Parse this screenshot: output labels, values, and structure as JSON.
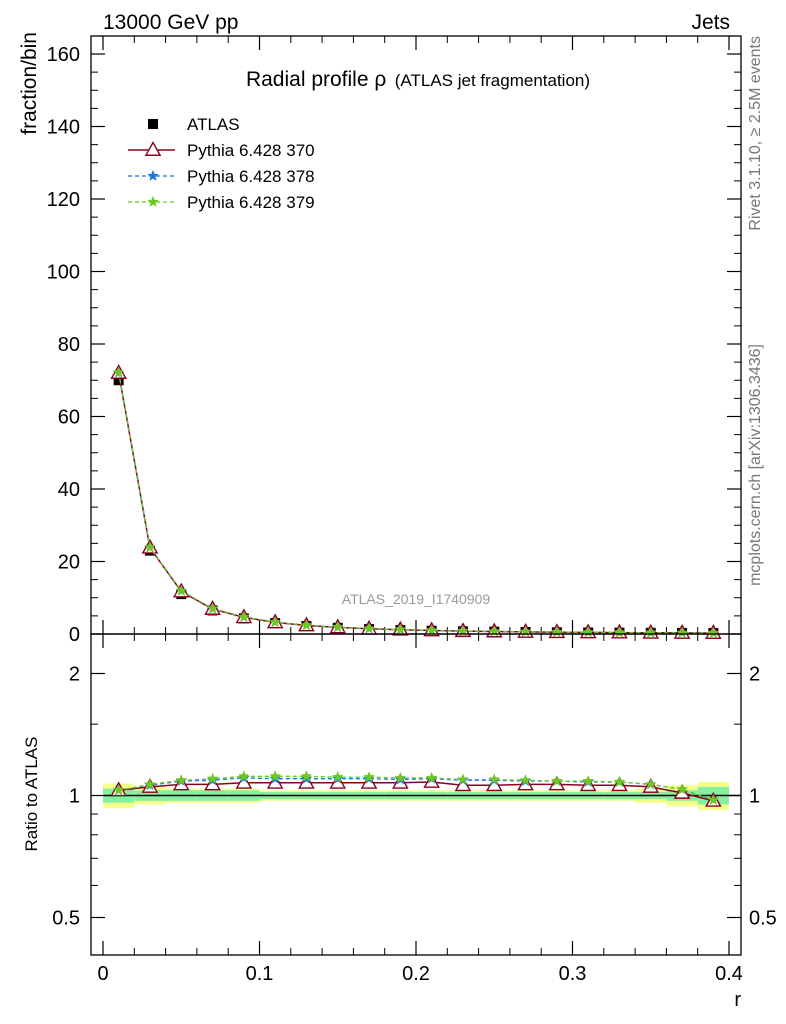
{
  "header": {
    "left": "13000 GeV pp",
    "right": "Jets"
  },
  "side_labels": {
    "rivet": "Rivet 3.1.10, ≥ 2.5M events",
    "mcplots": "mcplots.cern.ch [arXiv:1306.3436]"
  },
  "watermark": "ATLAS_2019_I1740909",
  "colors": {
    "data": "#000000",
    "pythia370": "#8b0020",
    "pythia378": "#1e78d8",
    "pythia379": "#6ec81e",
    "band_inner": "#86f0a0",
    "band_outer": "#f4ff8c"
  },
  "chart_data": [
    {
      "type": "line",
      "title": "Radial profile ρ",
      "title_suffix": "(ATLAS jet fragmentation)",
      "xlabel": "r",
      "ylabel": "fraction/bin",
      "xlim": [
        0,
        0.4
      ],
      "ylim": [
        0,
        165
      ],
      "y_ticks": [
        0,
        20,
        40,
        60,
        80,
        100,
        120,
        140,
        160
      ],
      "legend_position": "top-left",
      "x": [
        0.01,
        0.03,
        0.05,
        0.07,
        0.09,
        0.11,
        0.13,
        0.15,
        0.17,
        0.19,
        0.21,
        0.23,
        0.25,
        0.27,
        0.29,
        0.31,
        0.33,
        0.35,
        0.37,
        0.39
      ],
      "series": [
        {
          "name": "ATLAS",
          "style": "square-marker",
          "values": [
            70.0,
            23.0,
            11.0,
            6.5,
            4.3,
            3.0,
            2.2,
            1.7,
            1.35,
            1.1,
            0.9,
            0.75,
            0.65,
            0.55,
            0.48,
            0.42,
            0.37,
            0.33,
            0.3,
            0.27
          ]
        },
        {
          "name": "Pythia 6.428 370",
          "style": "triangle-line",
          "values": [
            72.0,
            23.8,
            11.7,
            6.9,
            4.6,
            3.2,
            2.35,
            1.82,
            1.44,
            1.18,
            0.97,
            0.79,
            0.69,
            0.58,
            0.51,
            0.44,
            0.39,
            0.34,
            0.3,
            0.26
          ]
        },
        {
          "name": "Pythia 6.428 378",
          "style": "star-dashed",
          "values": [
            72.1,
            23.9,
            11.9,
            7.0,
            4.7,
            3.25,
            2.4,
            1.86,
            1.47,
            1.2,
            0.98,
            0.81,
            0.71,
            0.59,
            0.52,
            0.45,
            0.39,
            0.34,
            0.31,
            0.27
          ]
        },
        {
          "name": "Pythia 6.428 379",
          "style": "star-dashed",
          "values": [
            72.2,
            23.9,
            11.9,
            7.0,
            4.7,
            3.26,
            2.41,
            1.87,
            1.48,
            1.21,
            0.99,
            0.81,
            0.71,
            0.59,
            0.52,
            0.45,
            0.39,
            0.34,
            0.31,
            0.27
          ]
        }
      ]
    },
    {
      "type": "line",
      "ylabel": "Ratio to ATLAS",
      "xlabel": "r",
      "xlim": [
        0,
        0.4
      ],
      "ylim": [
        0.39,
        2.3
      ],
      "y_scale": "log",
      "y_ticks": [
        0.5,
        1,
        2
      ],
      "x_ticks": [
        0,
        0.1,
        0.2,
        0.3,
        0.4
      ],
      "x": [
        0.01,
        0.03,
        0.05,
        0.07,
        0.09,
        0.11,
        0.13,
        0.15,
        0.17,
        0.19,
        0.21,
        0.23,
        0.25,
        0.27,
        0.29,
        0.31,
        0.33,
        0.35,
        0.37,
        0.39
      ],
      "band_inner": [
        0.04,
        0.03,
        0.03,
        0.03,
        0.03,
        0.02,
        0.02,
        0.02,
        0.02,
        0.02,
        0.02,
        0.02,
        0.02,
        0.02,
        0.02,
        0.02,
        0.02,
        0.02,
        0.03,
        0.05
      ],
      "band_outer": [
        0.07,
        0.05,
        0.04,
        0.04,
        0.04,
        0.03,
        0.03,
        0.03,
        0.03,
        0.03,
        0.03,
        0.03,
        0.03,
        0.03,
        0.03,
        0.03,
        0.03,
        0.04,
        0.06,
        0.08
      ],
      "series": [
        {
          "name": "Pythia 6.428 370",
          "values": [
            1.03,
            1.05,
            1.065,
            1.065,
            1.075,
            1.075,
            1.075,
            1.075,
            1.075,
            1.075,
            1.08,
            1.06,
            1.06,
            1.065,
            1.065,
            1.06,
            1.06,
            1.05,
            1.015,
            0.97
          ]
        },
        {
          "name": "Pythia 6.428 378",
          "values": [
            1.03,
            1.06,
            1.085,
            1.09,
            1.105,
            1.1,
            1.1,
            1.1,
            1.1,
            1.095,
            1.1,
            1.09,
            1.09,
            1.085,
            1.085,
            1.08,
            1.08,
            1.065,
            1.035,
            0.975
          ]
        },
        {
          "name": "Pythia 6.428 379",
          "values": [
            1.03,
            1.065,
            1.09,
            1.1,
            1.115,
            1.115,
            1.115,
            1.11,
            1.11,
            1.105,
            1.105,
            1.095,
            1.095,
            1.09,
            1.085,
            1.085,
            1.08,
            1.065,
            1.035,
            0.975
          ]
        }
      ]
    }
  ]
}
